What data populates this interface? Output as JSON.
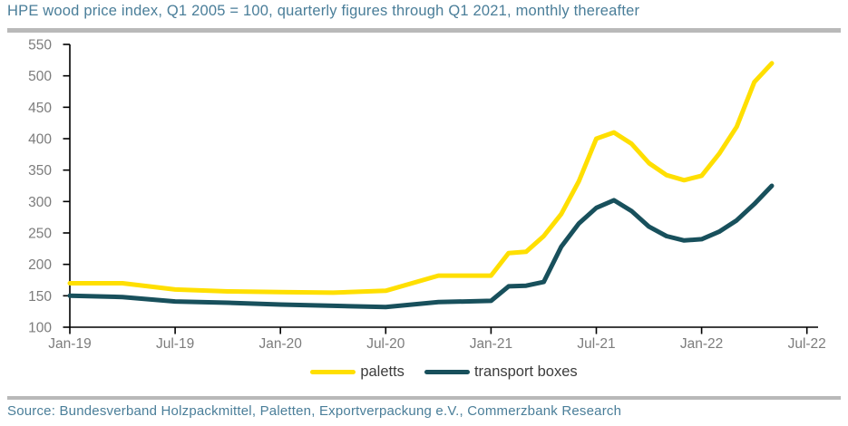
{
  "header": {
    "title": "HPE wood price index, Q1 2005 = 100, quarterly figures through Q1 2021, monthly thereafter"
  },
  "footer": {
    "source": "Source: Bundesverband Holzpackmittel, Paletten, Exportverpackung e.V., Commerzbank Research"
  },
  "legend": {
    "items": [
      {
        "label": "paletts",
        "color": "#FFDF00"
      },
      {
        "label": "transport boxes",
        "color": "#18505C"
      }
    ]
  },
  "colors": {
    "title_text": "#4A7E99",
    "source_text": "#4A7E99",
    "separator_rule": "#B9B9B9",
    "axis": "#000000",
    "tick_label": "#7C7C7C",
    "paletts_line": "#FFDF00",
    "transport_boxes_line": "#18505C"
  },
  "chart_data": {
    "type": "line",
    "title": "HPE wood price index, Q1 2005 = 100, quarterly figures through Q1 2021, monthly thereafter",
    "xlabel": "",
    "ylabel": "",
    "grid": false,
    "legend_position": "bottom",
    "ylim": [
      100,
      550
    ],
    "ytick_step": 50,
    "x_unit": "months since Jan-2019",
    "x_tick_months": [
      0,
      6,
      12,
      18,
      24,
      30,
      36,
      42
    ],
    "x_tick_labels": [
      "Jan-19",
      "Jul-19",
      "Jan-20",
      "Jul-20",
      "Jan-21",
      "Jul-21",
      "Jan-22",
      "Jul-22"
    ],
    "frequency_note": "quarterly points Jan-19 through Jan-21, monthly points Feb-21 through May-22",
    "series": [
      {
        "name": "paletts",
        "color": "#FFDF00",
        "points": [
          [
            0,
            170
          ],
          [
            3,
            170
          ],
          [
            6,
            160
          ],
          [
            9,
            157
          ],
          [
            12,
            156
          ],
          [
            15,
            155
          ],
          [
            18,
            158
          ],
          [
            21,
            182
          ],
          [
            24,
            182
          ],
          [
            25,
            218
          ],
          [
            26,
            220
          ],
          [
            27,
            245
          ],
          [
            28,
            280
          ],
          [
            29,
            332
          ],
          [
            30,
            400
          ],
          [
            31,
            410
          ],
          [
            32,
            392
          ],
          [
            33,
            361
          ],
          [
            34,
            342
          ],
          [
            35,
            334
          ],
          [
            36,
            341
          ],
          [
            37,
            376
          ],
          [
            38,
            419
          ],
          [
            39,
            490
          ],
          [
            40,
            520
          ]
        ]
      },
      {
        "name": "transport boxes",
        "color": "#18505C",
        "points": [
          [
            0,
            150
          ],
          [
            3,
            148
          ],
          [
            6,
            141
          ],
          [
            9,
            139
          ],
          [
            12,
            136
          ],
          [
            15,
            134
          ],
          [
            18,
            132
          ],
          [
            21,
            140
          ],
          [
            24,
            142
          ],
          [
            25,
            165
          ],
          [
            26,
            166
          ],
          [
            27,
            172
          ],
          [
            28,
            228
          ],
          [
            29,
            265
          ],
          [
            30,
            290
          ],
          [
            31,
            302
          ],
          [
            32,
            285
          ],
          [
            33,
            260
          ],
          [
            34,
            245
          ],
          [
            35,
            238
          ],
          [
            36,
            240
          ],
          [
            37,
            252
          ],
          [
            38,
            270
          ],
          [
            39,
            296
          ],
          [
            40,
            325
          ]
        ]
      }
    ]
  }
}
